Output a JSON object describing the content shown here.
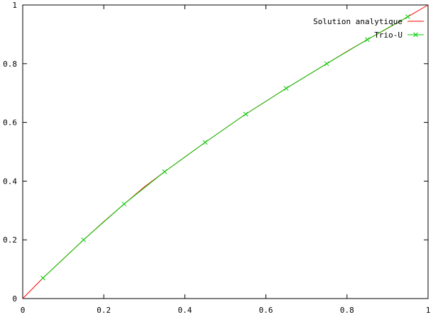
{
  "chart_data": {
    "type": "line",
    "title": "",
    "xlabel": "",
    "ylabel": "",
    "xlim": [
      0,
      1
    ],
    "ylim": [
      0,
      1
    ],
    "grid": false,
    "legend_position": "top-right",
    "x_ticks": [
      "0",
      "0.2",
      "0.4",
      "0.6",
      "0.8",
      "1"
    ],
    "y_ticks": [
      "0",
      "0.2",
      "0.4",
      "0.6",
      "0.8",
      "1"
    ],
    "series": [
      {
        "name": "Solution analytique",
        "color": "#ff0000",
        "marker": "none",
        "x": [
          0,
          0.05,
          0.1,
          0.15,
          0.2,
          0.25,
          0.3,
          0.35,
          0.4,
          0.45,
          0.5,
          0.55,
          0.6,
          0.65,
          0.7,
          0.75,
          0.8,
          0.85,
          0.9,
          0.95,
          1
        ],
        "y": [
          0,
          0.07,
          0.135,
          0.2,
          0.262,
          0.322,
          0.38,
          0.432,
          0.482,
          0.532,
          0.58,
          0.628,
          0.672,
          0.716,
          0.758,
          0.8,
          0.842,
          0.882,
          0.92,
          0.96,
          1
        ]
      },
      {
        "name": "Trio-U",
        "color": "#00cc00",
        "marker": "x",
        "x": [
          0.05,
          0.15,
          0.25,
          0.35,
          0.45,
          0.55,
          0.65,
          0.75,
          0.85,
          0.95
        ],
        "y": [
          0.07,
          0.2,
          0.322,
          0.432,
          0.532,
          0.628,
          0.716,
          0.8,
          0.882,
          0.96
        ]
      }
    ]
  }
}
